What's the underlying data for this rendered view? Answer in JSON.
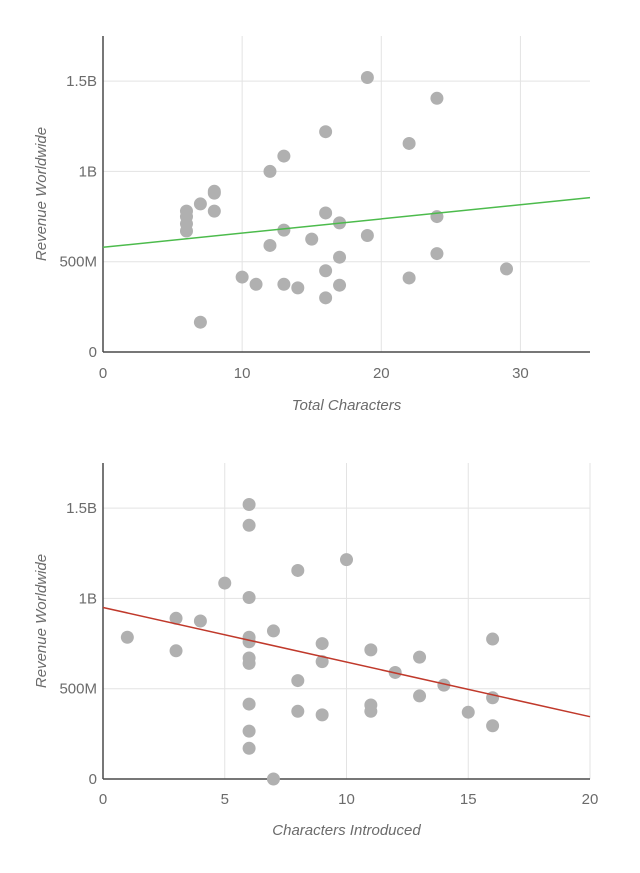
{
  "chart_data": [
    {
      "type": "scatter",
      "title": "",
      "xlabel": "Total Characters",
      "ylabel": "Revenue Worldwide",
      "xlim": [
        0,
        35
      ],
      "ylim": [
        0,
        1750000000
      ],
      "x_ticks": [
        0,
        10,
        20,
        30
      ],
      "x_tick_labels": [
        "0",
        "10",
        "20",
        "30"
      ],
      "y_ticks": [
        0,
        500000000,
        1000000000,
        1500000000
      ],
      "y_tick_labels": [
        "0",
        "500M",
        "1B",
        "1.5B"
      ],
      "grid": true,
      "point_color": "#b0b0b0",
      "trendline": {
        "color": "#4cbb4c",
        "x": [
          0,
          35
        ],
        "y": [
          580000000,
          855000000
        ]
      },
      "x": [
        6,
        6,
        6,
        6,
        7,
        7,
        8,
        8,
        8,
        10,
        11,
        12,
        12,
        13,
        13,
        13,
        14,
        15,
        16,
        16,
        16,
        16,
        17,
        17,
        17,
        19,
        19,
        22,
        22,
        24,
        24,
        24,
        29
      ],
      "y": [
        780000000,
        750000000,
        710000000,
        670000000,
        820000000,
        165000000,
        880000000,
        890000000,
        780000000,
        415000000,
        375000000,
        1000000000,
        590000000,
        1085000000,
        675000000,
        375000000,
        355000000,
        625000000,
        1220000000,
        770000000,
        450000000,
        300000000,
        715000000,
        525000000,
        370000000,
        1520000000,
        645000000,
        1155000000,
        410000000,
        1405000000,
        750000000,
        545000000,
        460000000
      ]
    },
    {
      "type": "scatter",
      "title": "",
      "xlabel": "Characters Introduced",
      "ylabel": "Revenue Worldwide",
      "xlim": [
        0,
        20
      ],
      "ylim": [
        0,
        1750000000
      ],
      "x_ticks": [
        0,
        5,
        10,
        15,
        20
      ],
      "x_tick_labels": [
        "0",
        "5",
        "10",
        "15",
        "20"
      ],
      "y_ticks": [
        0,
        500000000,
        1000000000,
        1500000000
      ],
      "y_tick_labels": [
        "0",
        "500M",
        "1B",
        "1.5B"
      ],
      "grid": true,
      "point_color": "#b0b0b0",
      "trendline": {
        "color": "#c0392b",
        "x": [
          0,
          20
        ],
        "y": [
          950000000,
          345000000
        ]
      },
      "x": [
        1,
        3,
        3,
        4,
        5,
        6,
        6,
        6,
        6,
        6,
        6,
        6,
        6,
        6,
        6,
        7,
        7,
        8,
        8,
        8,
        9,
        9,
        9,
        10,
        11,
        11,
        11,
        12,
        13,
        13,
        14,
        15,
        16,
        16,
        16
      ],
      "y": [
        785000000,
        890000000,
        710000000,
        875000000,
        1085000000,
        1520000000,
        1405000000,
        1005000000,
        785000000,
        760000000,
        670000000,
        640000000,
        415000000,
        265000000,
        170000000,
        820000000,
        0,
        1155000000,
        545000000,
        375000000,
        750000000,
        650000000,
        355000000,
        1215000000,
        715000000,
        410000000,
        375000000,
        590000000,
        675000000,
        460000000,
        520000000,
        370000000,
        775000000,
        450000000,
        295000000
      ]
    }
  ]
}
